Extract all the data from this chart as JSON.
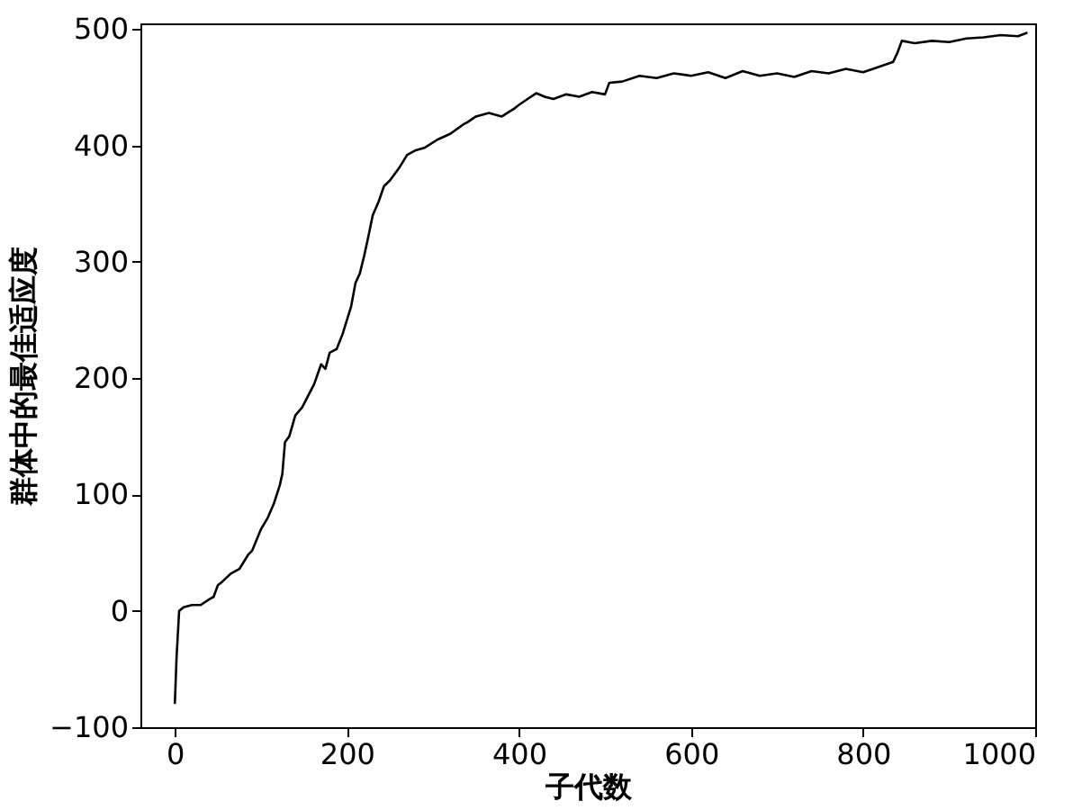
{
  "chart_data": {
    "type": "line",
    "xlabel": "子代数",
    "ylabel": "群体中的最佳适应度",
    "xlim": [
      -40,
      1000
    ],
    "xticks": [
      0,
      200,
      400,
      600,
      800,
      1000
    ],
    "ylim": [
      -100,
      505
    ],
    "yticks": [
      -100,
      0,
      100,
      200,
      300,
      400,
      500
    ],
    "grid": false,
    "marker": "none",
    "line_style": "solid",
    "series": [
      {
        "color": "#000000",
        "x": [
          0,
          2,
          5,
          10,
          20,
          30,
          40,
          45,
          50,
          55,
          65,
          75,
          85,
          90,
          100,
          108,
          115,
          122,
          125,
          128,
          133,
          140,
          148,
          155,
          162,
          170,
          175,
          180,
          188,
          195,
          200,
          205,
          210,
          215,
          220,
          225,
          230,
          237,
          243,
          250,
          260,
          270,
          280,
          290,
          305,
          320,
          335,
          340,
          350,
          365,
          380,
          395,
          400,
          410,
          420,
          430,
          440,
          455,
          470,
          485,
          500,
          505,
          520,
          540,
          560,
          580,
          600,
          620,
          640,
          660,
          680,
          700,
          720,
          740,
          760,
          780,
          800,
          820,
          835,
          840,
          845,
          860,
          880,
          900,
          920,
          940,
          960,
          980,
          991
        ],
        "values": [
          -80,
          -40,
          0,
          3,
          5,
          5,
          10,
          12,
          22,
          25,
          32,
          36,
          48,
          52,
          70,
          80,
          92,
          108,
          118,
          145,
          150,
          168,
          175,
          185,
          195,
          212,
          208,
          222,
          225,
          238,
          250,
          262,
          282,
          290,
          305,
          322,
          340,
          352,
          365,
          370,
          380,
          392,
          396,
          398,
          405,
          410,
          418,
          420,
          425,
          428,
          425,
          432,
          435,
          440,
          445,
          442,
          440,
          444,
          442,
          446,
          444,
          454,
          455,
          460,
          458,
          462,
          460,
          463,
          458,
          464,
          460,
          462,
          459,
          464,
          462,
          466,
          463,
          468,
          472,
          480,
          490,
          488,
          490,
          489,
          492,
          493,
          495,
          494,
          497
        ]
      }
    ]
  }
}
